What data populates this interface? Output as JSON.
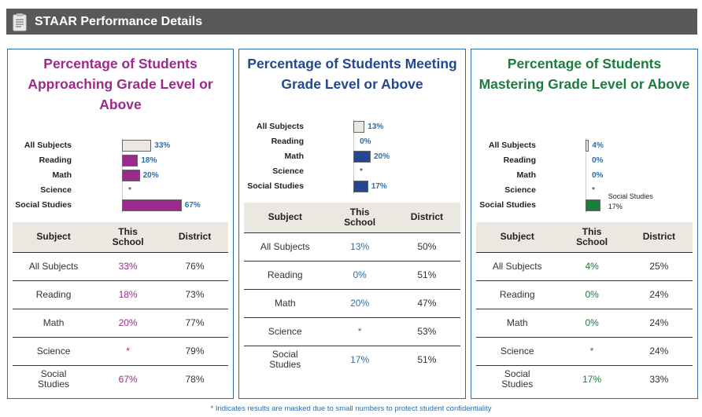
{
  "header": {
    "title": "STAAR Performance Details",
    "icon": "clipboard-icon"
  },
  "panels": [
    {
      "title": "Percentage of Students Approaching Grade Level or Above",
      "bar_color": "#9b2a8c",
      "chart_data": {
        "type": "bar",
        "orientation": "horizontal",
        "categories": [
          "All Subjects",
          "Reading",
          "Math",
          "Science",
          "Social Studies"
        ],
        "values": [
          33,
          18,
          20,
          null,
          67
        ],
        "value_labels": [
          "33%",
          "18%",
          "20%",
          "*",
          "67%"
        ],
        "highlight_first_category": true
      },
      "table": {
        "headers": [
          "Subject",
          "This School",
          "District"
        ],
        "rows": [
          [
            "All Subjects",
            "33%",
            "76%"
          ],
          [
            "Reading",
            "18%",
            "73%"
          ],
          [
            "Math",
            "20%",
            "77%"
          ],
          [
            "Science",
            "*",
            "79%"
          ],
          [
            "Social Studies",
            "67%",
            "78%"
          ]
        ]
      }
    },
    {
      "title": "Percentage of Students Meeting Grade Level or Above",
      "bar_color": "#22488f",
      "chart_data": {
        "type": "bar",
        "orientation": "horizontal",
        "categories": [
          "All Subjects",
          "Reading",
          "Math",
          "Science",
          "Social Studies"
        ],
        "values": [
          13,
          0,
          20,
          null,
          17
        ],
        "value_labels": [
          "13%",
          "0%",
          "20%",
          "*",
          "17%"
        ],
        "highlight_first_category": true
      },
      "table": {
        "headers": [
          "Subject",
          "This School",
          "District"
        ],
        "rows": [
          [
            "All Subjects",
            "13%",
            "50%"
          ],
          [
            "Reading",
            "0%",
            "51%"
          ],
          [
            "Math",
            "20%",
            "47%"
          ],
          [
            "Science",
            "*",
            "53%"
          ],
          [
            "Social Studies",
            "17%",
            "51%"
          ]
        ]
      }
    },
    {
      "title": "Percentage of Students Mastering Grade Level or Above",
      "bar_color": "#1b7c3d",
      "chart_data": {
        "type": "bar",
        "orientation": "horizontal",
        "categories": [
          "All Subjects",
          "Reading",
          "Math",
          "Science",
          "Social Studies"
        ],
        "values": [
          4,
          0,
          0,
          null,
          17
        ],
        "value_labels": [
          "4%",
          "0%",
          "0%",
          "*",
          "17%"
        ],
        "highlight_first_category": true,
        "annotation": {
          "series": "Social Studies",
          "value": "17%"
        }
      },
      "table": {
        "headers": [
          "Subject",
          "This School",
          "District"
        ],
        "rows": [
          [
            "All Subjects",
            "4%",
            "25%"
          ],
          [
            "Reading",
            "0%",
            "24%"
          ],
          [
            "Math",
            "0%",
            "24%"
          ],
          [
            "Science",
            "*",
            "24%"
          ],
          [
            "Social Studies",
            "17%",
            "33%"
          ]
        ]
      }
    }
  ],
  "footnote": "* Indicates results are masked due to small numbers to protect student confidentiality"
}
